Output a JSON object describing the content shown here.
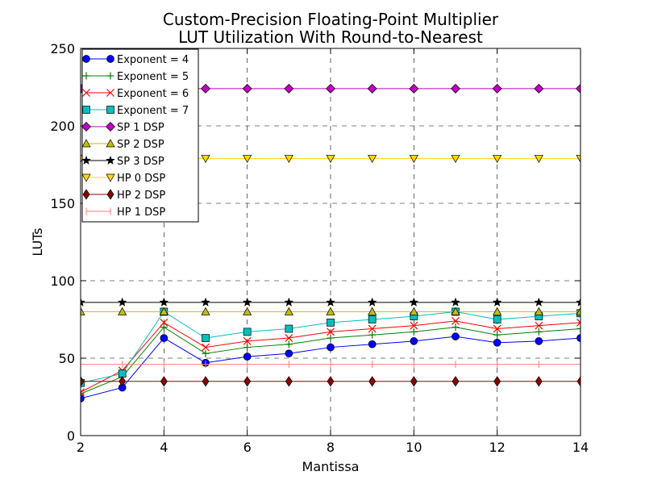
{
  "chart_data": {
    "type": "line",
    "title": [
      "Custom-Precision Floating-Point Multiplier",
      "LUT Utilization With Round-to-Nearest"
    ],
    "xlabel": "Mantissa",
    "ylabel": "LUTs",
    "xlim": [
      2,
      14
    ],
    "ylim": [
      0,
      250
    ],
    "xticks": [
      2,
      4,
      6,
      8,
      10,
      12,
      14
    ],
    "yticks": [
      0,
      50,
      100,
      150,
      200,
      250
    ],
    "grid": true,
    "legend_position": "upper-left",
    "x": [
      2,
      3,
      4,
      5,
      6,
      7,
      8,
      9,
      10,
      11,
      12,
      13,
      14
    ],
    "series": [
      {
        "name": "Exponent = 4",
        "color": "#0000ff",
        "marker": "circle",
        "values": [
          24,
          31,
          63,
          47,
          51,
          53,
          57,
          59,
          61,
          64,
          60,
          61,
          63
        ]
      },
      {
        "name": "Exponent = 5",
        "color": "#008000",
        "marker": "plus",
        "values": [
          27,
          38,
          70,
          53,
          57,
          59,
          63,
          65,
          67,
          70,
          65,
          67,
          69
        ]
      },
      {
        "name": "Exponent = 6",
        "color": "#ff0000",
        "marker": "x",
        "values": [
          28,
          42,
          73,
          57,
          61,
          63,
          67,
          69,
          71,
          74,
          69,
          71,
          73
        ]
      },
      {
        "name": "Exponent = 7",
        "color": "#00bfbf",
        "marker": "square",
        "values": [
          34,
          40,
          80,
          63,
          67,
          69,
          73,
          75,
          77,
          80,
          75,
          77,
          79
        ]
      },
      {
        "name": "SP 1 DSP",
        "color": "#bf00bf",
        "marker": "diamond",
        "values": [
          224,
          224,
          224,
          224,
          224,
          224,
          224,
          224,
          224,
          224,
          224,
          224,
          224
        ]
      },
      {
        "name": "SP 2 DSP",
        "color": "#bfbf00",
        "marker": "triangle-up",
        "values": [
          80,
          80,
          80,
          80,
          80,
          80,
          80,
          80,
          80,
          80,
          80,
          80,
          80
        ]
      },
      {
        "name": "SP 3 DSP",
        "color": "#000000",
        "marker": "star",
        "values": [
          86,
          86,
          86,
          86,
          86,
          86,
          86,
          86,
          86,
          86,
          86,
          86,
          86
        ]
      },
      {
        "name": "HP 0 DSP",
        "color": "#ffd700",
        "marker": "triangle-down",
        "values": [
          179,
          179,
          179,
          179,
          179,
          179,
          179,
          179,
          179,
          179,
          179,
          179,
          179
        ]
      },
      {
        "name": "HP 2 DSP",
        "color": "#8b0000",
        "marker": "thin-diamond",
        "values": [
          35,
          35,
          35,
          35,
          35,
          35,
          35,
          35,
          35,
          35,
          35,
          35,
          35
        ]
      },
      {
        "name": "HP 1 DSP",
        "color": "#fa8072",
        "marker": "vline",
        "values": [
          46,
          46,
          46,
          46,
          46,
          46,
          46,
          46,
          46,
          46,
          46,
          46,
          46
        ]
      }
    ]
  }
}
